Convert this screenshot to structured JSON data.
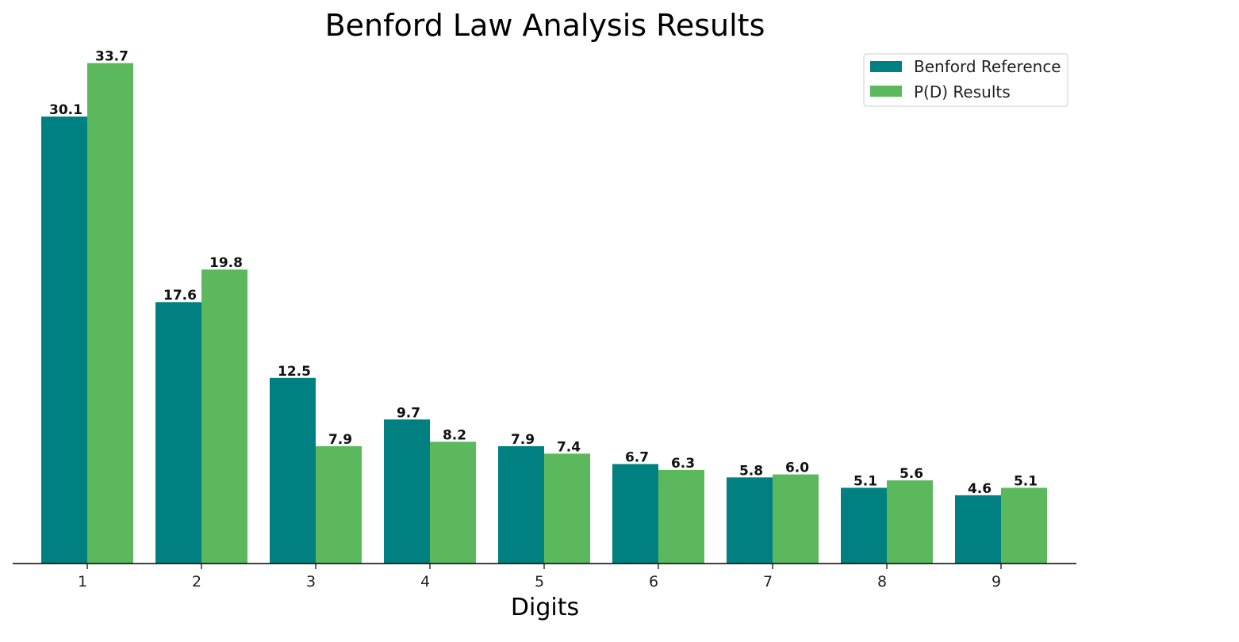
{
  "chart_data": {
    "type": "bar",
    "title": "Benford Law Analysis Results",
    "xlabel": "Digits",
    "ylabel": "",
    "categories": [
      "1",
      "2",
      "3",
      "4",
      "5",
      "6",
      "7",
      "8",
      "9"
    ],
    "ylim": [
      0,
      35.6
    ],
    "grid": false,
    "legend_position": "top-right",
    "series": [
      {
        "name": "Benford Reference",
        "color": "#008080",
        "values": [
          30.1,
          17.6,
          12.5,
          9.7,
          7.9,
          6.7,
          5.8,
          5.1,
          4.6
        ],
        "labels": [
          "30.1",
          "17.6",
          "12.5",
          "9.7",
          "7.9",
          "6.7",
          "5.8",
          "5.1",
          "4.6"
        ]
      },
      {
        "name": "P(D) Results",
        "color": "#5cb85c",
        "values": [
          33.7,
          19.8,
          7.9,
          8.2,
          7.4,
          6.3,
          6.0,
          5.6,
          5.1
        ],
        "labels": [
          "33.7",
          "19.8",
          "7.9",
          "8.2",
          "7.4",
          "6.3",
          "6.0",
          "5.6",
          "5.1"
        ]
      }
    ]
  }
}
